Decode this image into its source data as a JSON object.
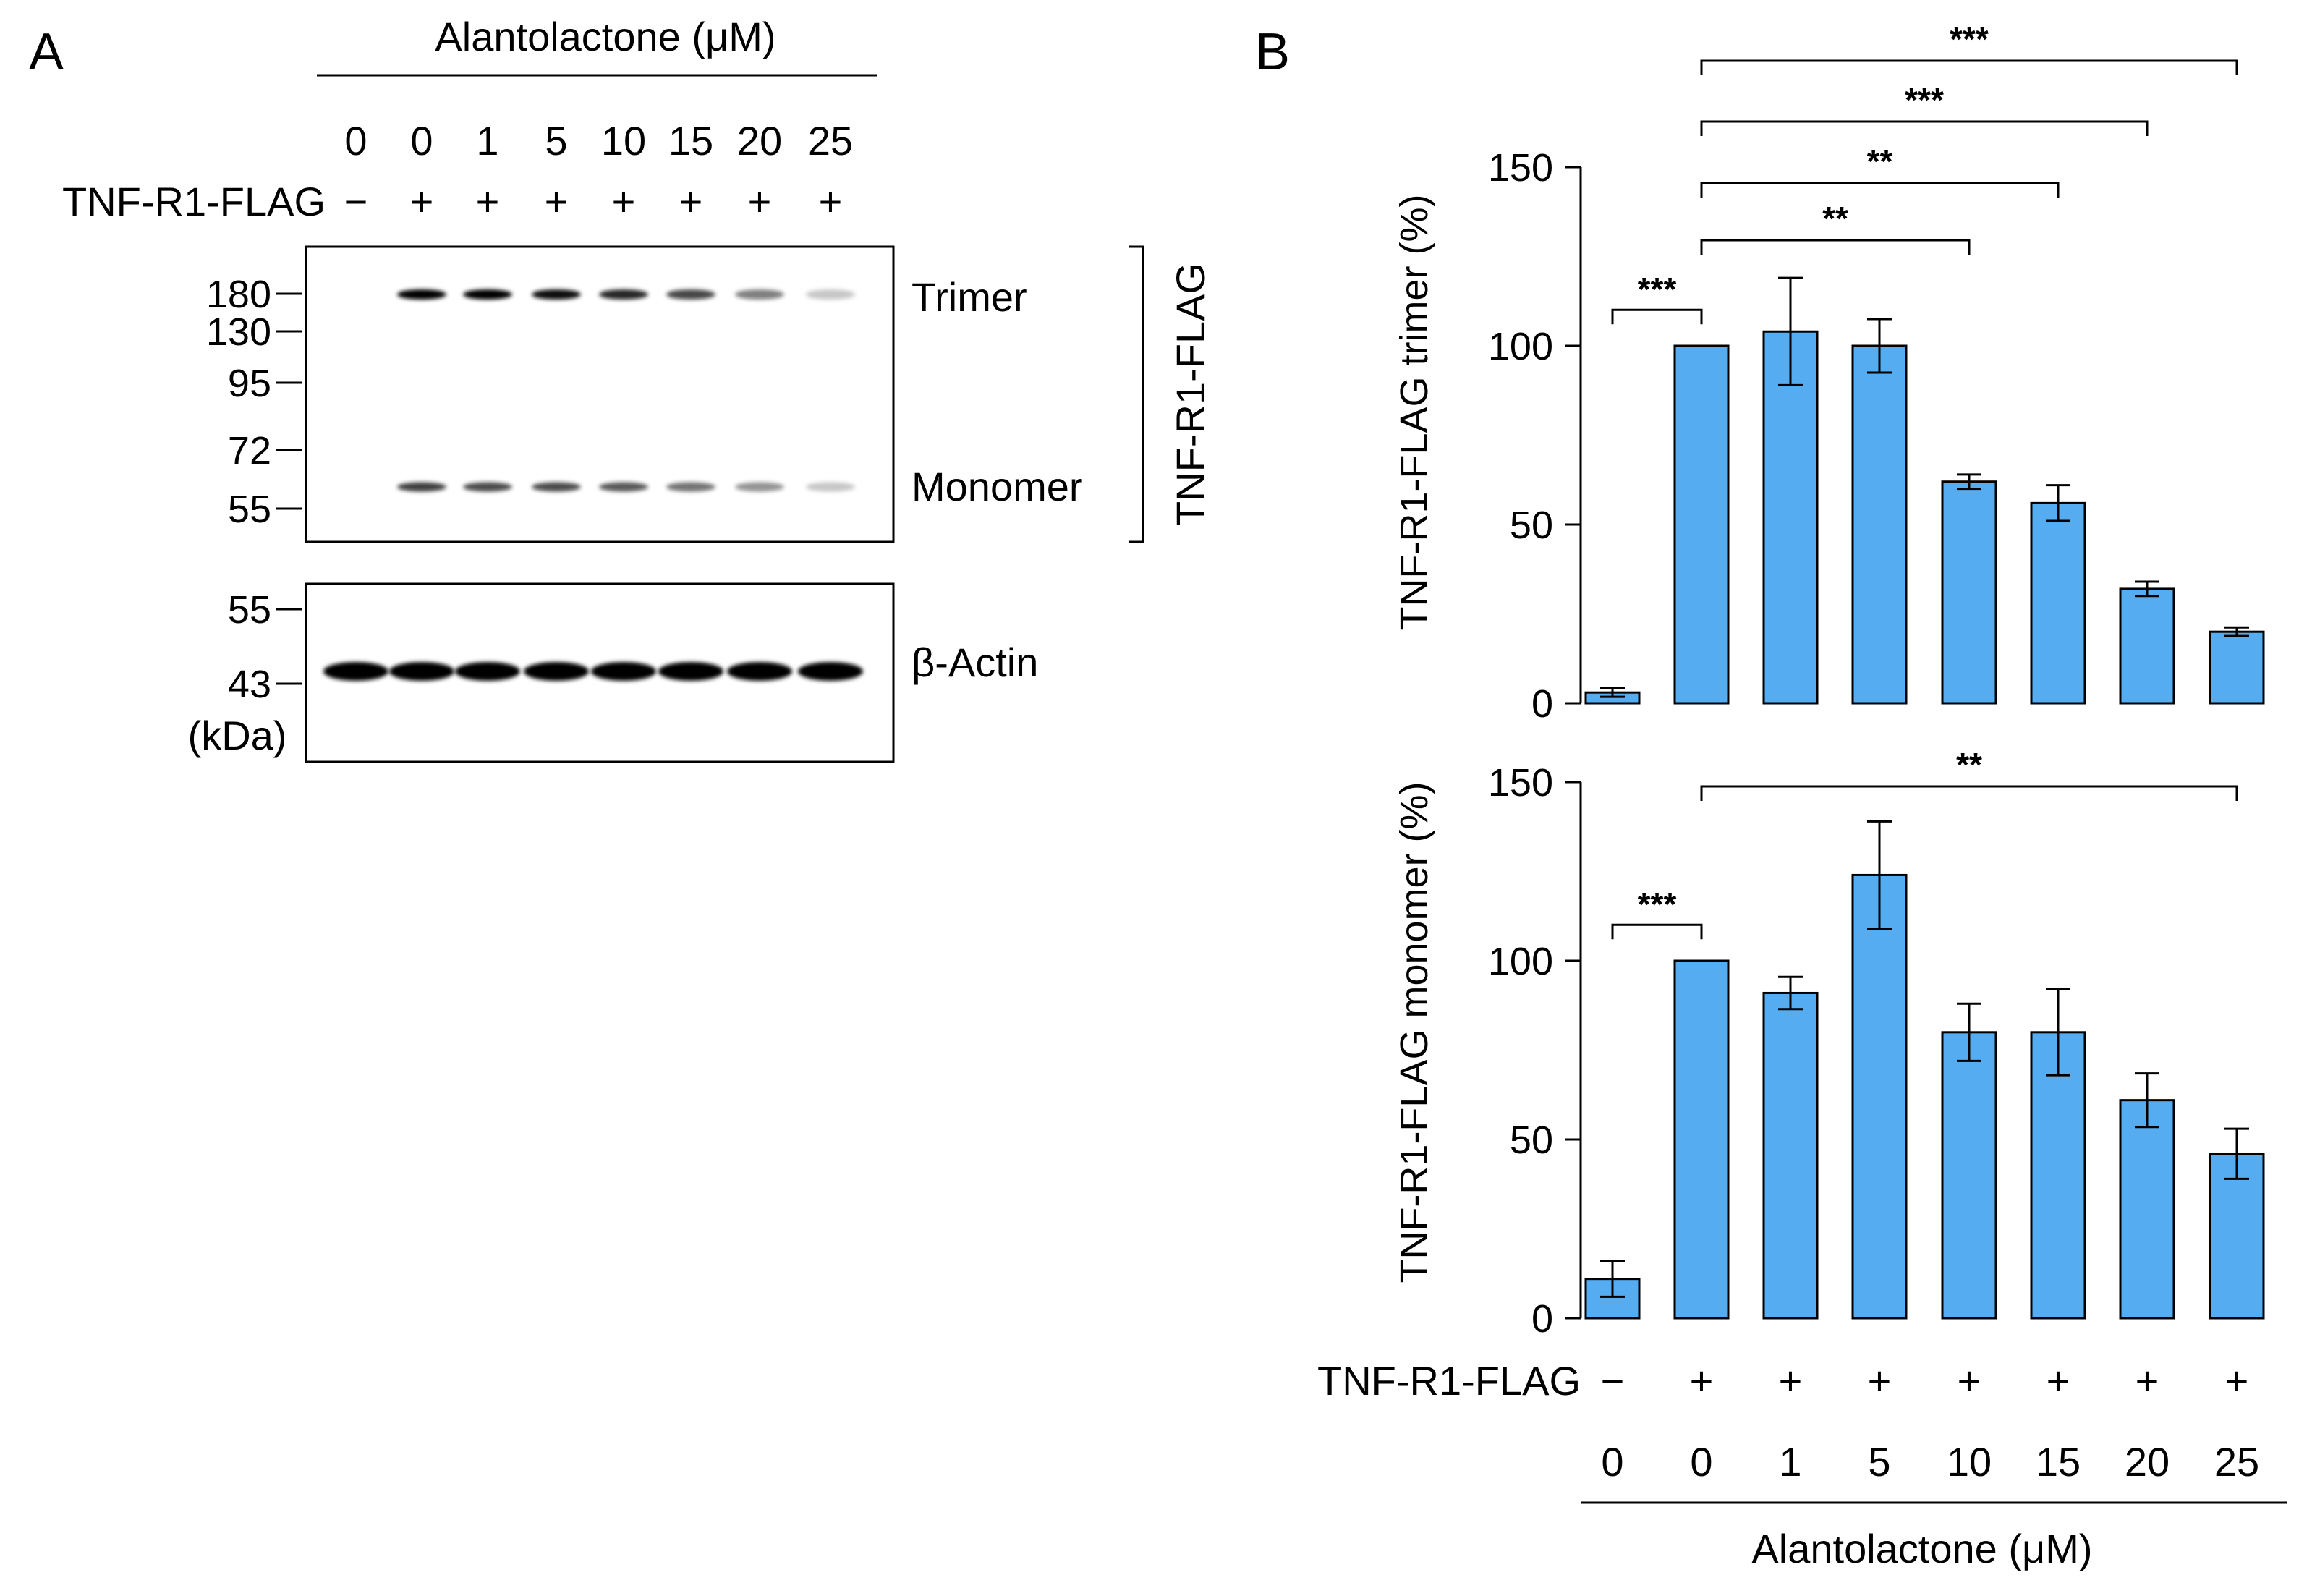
{
  "panel_a": {
    "letter": "A",
    "treatment_title": "Alantolactone (μM)",
    "doses": [
      "0",
      "0",
      "1",
      "5",
      "10",
      "15",
      "20",
      "25"
    ],
    "transfection_label": "TNF-R1-FLAG",
    "transfection_signs": [
      "−",
      "+",
      "+",
      "+",
      "+",
      "+",
      "+",
      "+"
    ],
    "top_blot_markers": [
      "180",
      "130",
      "95",
      "72",
      "55"
    ],
    "bottom_blot_markers": [
      "55",
      "43"
    ],
    "unit_label": "(kDa)",
    "band_labels": {
      "trimer": "Trimer",
      "monomer": "Monomer",
      "actin": "β-Actin"
    },
    "bracket_label": "TNF-R1-FLAG",
    "trimer_band_intensity": [
      0,
      1.0,
      1.0,
      0.95,
      0.85,
      0.72,
      0.5,
      0.22
    ],
    "monomer_band_intensity": [
      0,
      0.75,
      0.7,
      0.7,
      0.65,
      0.55,
      0.42,
      0.22
    ],
    "actin_band_intensity": [
      1,
      1,
      1,
      1,
      1,
      1,
      1,
      1
    ]
  },
  "panel_b": {
    "letter": "B",
    "bar_color": "#55acf1",
    "transfection_label": "TNF-R1-FLAG",
    "transfection_signs": [
      "−",
      "+",
      "+",
      "+",
      "+",
      "+",
      "+",
      "+"
    ],
    "xlabel": "Alantolactone (μM)"
  },
  "chart_data": [
    {
      "type": "bar",
      "title": "",
      "ylabel": "TNF-R1-FLAG trimer (%)",
      "xlabel": "Alantolactone (μM)",
      "ylim": [
        0,
        150
      ],
      "yticks": [
        "0",
        "50",
        "100",
        "150"
      ],
      "categories": [
        "0",
        "0",
        "1",
        "5",
        "10",
        "15",
        "20",
        "25"
      ],
      "values": [
        3,
        100,
        104,
        100,
        62,
        56,
        32,
        20
      ],
      "errors": [
        1.2,
        0,
        15,
        7.5,
        2,
        5,
        2,
        1.2
      ],
      "significance": [
        {
          "from": 0,
          "to": 1,
          "label": "***"
        },
        {
          "from": 1,
          "to": 4,
          "label": "**"
        },
        {
          "from": 1,
          "to": 5,
          "label": "**"
        },
        {
          "from": 1,
          "to": 6,
          "label": "***"
        },
        {
          "from": 1,
          "to": 7,
          "label": "***"
        }
      ]
    },
    {
      "type": "bar",
      "title": "",
      "ylabel": "TNF-R1-FLAG monomer (%)",
      "xlabel": "Alantolactone (μM)",
      "ylim": [
        0,
        150
      ],
      "yticks": [
        "0",
        "50",
        "100",
        "150"
      ],
      "categories": [
        "0",
        "0",
        "1",
        "5",
        "10",
        "15",
        "20",
        "25"
      ],
      "values": [
        11,
        100,
        91,
        124,
        80,
        80,
        61,
        46
      ],
      "errors": [
        5,
        0,
        4.5,
        15,
        8,
        12,
        7.5,
        7
      ],
      "significance": [
        {
          "from": 0,
          "to": 1,
          "label": "***"
        },
        {
          "from": 1,
          "to": 7,
          "label": "**"
        }
      ]
    }
  ]
}
